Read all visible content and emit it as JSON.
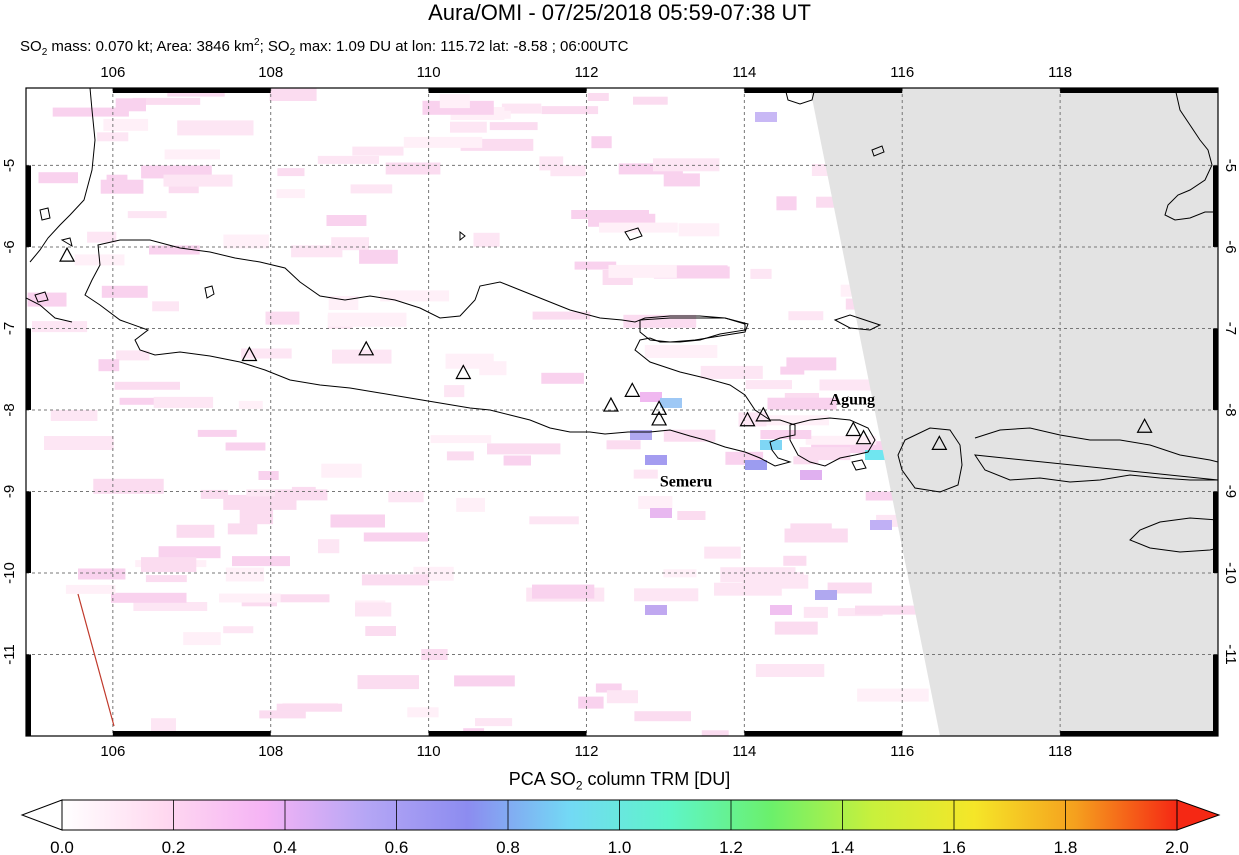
{
  "title": "Aura/OMI - 07/25/2018 05:59-07:38 UT",
  "subtitle": {
    "prefix": "SO",
    "mass_text": " mass: 0.070 kt; Area: 3846 km",
    "area_sup": "2",
    "sep": "; SO",
    "max_text": " max: 1.09 DU at lon: 115.72 lat: -8.58 ; 06:00UTC",
    "sub2": "2"
  },
  "map": {
    "lon_range": [
      104.9,
      120.0
    ],
    "lat_range": [
      -12.0,
      -4.05
    ],
    "lon_ticks": [
      106,
      108,
      110,
      112,
      114,
      116,
      118
    ],
    "lon_tick_labels": [
      "106",
      "108",
      "110",
      "112",
      "114",
      "116",
      "118"
    ],
    "lat_ticks": [
      -5,
      -6,
      -7,
      -8,
      -9,
      -10,
      -11
    ],
    "lat_tick_labels": [
      "-5",
      "-6",
      "-7",
      "-8",
      "-9",
      "-10",
      "-11"
    ],
    "no_data_color": "#e3e3e3",
    "coast_color": "#000000",
    "grid": true
  },
  "volcanoes": [
    {
      "lon": 105.42,
      "lat": -6.1
    },
    {
      "lon": 107.73,
      "lat": -7.32
    },
    {
      "lon": 109.21,
      "lat": -7.25
    },
    {
      "lon": 110.44,
      "lat": -7.54
    },
    {
      "lon": 112.31,
      "lat": -7.94
    },
    {
      "lon": 112.58,
      "lat": -7.76
    },
    {
      "lon": 112.92,
      "lat": -7.98
    },
    {
      "lon": 112.92,
      "lat": -8.11
    },
    {
      "lon": 114.04,
      "lat": -8.12
    },
    {
      "lon": 114.24,
      "lat": -8.06
    },
    {
      "lon": 115.38,
      "lat": -8.24
    },
    {
      "lon": 115.51,
      "lat": -8.34
    },
    {
      "lon": 116.47,
      "lat": -8.41
    },
    {
      "lon": 119.07,
      "lat": -8.2
    }
  ],
  "volcano_labels": [
    {
      "text": "Agung",
      "lon": 115.08,
      "lat": -7.93
    },
    {
      "text": "Semeru",
      "lon": 112.93,
      "lat": -8.94
    }
  ],
  "colorbar": {
    "title_prefix": "PCA SO",
    "title_sub": "2",
    "title_suffix": " column TRM [DU]",
    "min": 0.0,
    "max": 2.0,
    "tick_values": [
      0.0,
      0.2,
      0.4,
      0.6,
      0.8,
      1.0,
      1.2,
      1.4,
      1.6,
      1.8,
      2.0
    ],
    "tick_labels": [
      "0.0",
      "0.2",
      "0.4",
      "0.6",
      "0.8",
      "1.0",
      "1.2",
      "1.4",
      "1.6",
      "1.8",
      "2.0"
    ],
    "colors": [
      "#ffffff",
      "#ffd9f0",
      "#f5b3f5",
      "#b5a6f5",
      "#8c8cf0",
      "#73d9f5",
      "#5ef5c8",
      "#6bf06b",
      "#c8f03c",
      "#f5e628",
      "#f5a01e",
      "#f52814"
    ]
  }
}
